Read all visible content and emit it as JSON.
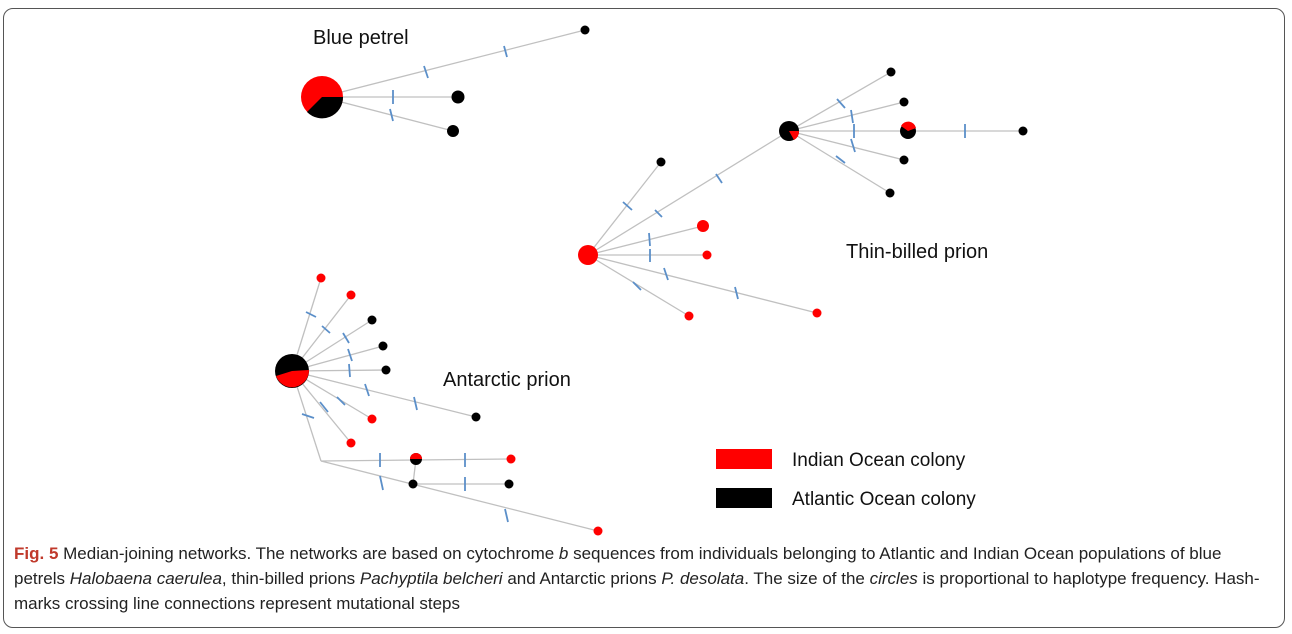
{
  "labels": {
    "blue_petrel": "Blue petrel",
    "thin_billed_prion": "Thin-billed prion",
    "antarctic_prion": "Antarctic prion"
  },
  "legend": {
    "indian": "Indian Ocean colony",
    "atlantic": "Atlantic Ocean colony"
  },
  "colors": {
    "indian": "#ff0000",
    "atlantic": "#000000",
    "edge": "#c0c0c0",
    "hash": "#5b8fc9"
  },
  "caption": {
    "fig": "Fig. 5",
    "t1": " Median-joining networks. The networks are based on cytochrome ",
    "i1": "b",
    "t2": " sequences from individuals belonging to Atlantic and Indian Ocean populations of blue petrels ",
    "i2": "Halobaena caerulea",
    "t3": ", thin-billed prions ",
    "i3": "Pachyptila belcheri",
    "t4": " and Antarctic prions ",
    "i4": "P. desolata",
    "t5": ". The size of the ",
    "i5": "circles",
    "t6": " is proportional to haplotype frequency. Hash-marks crossing line connections represent mutational steps"
  }
}
